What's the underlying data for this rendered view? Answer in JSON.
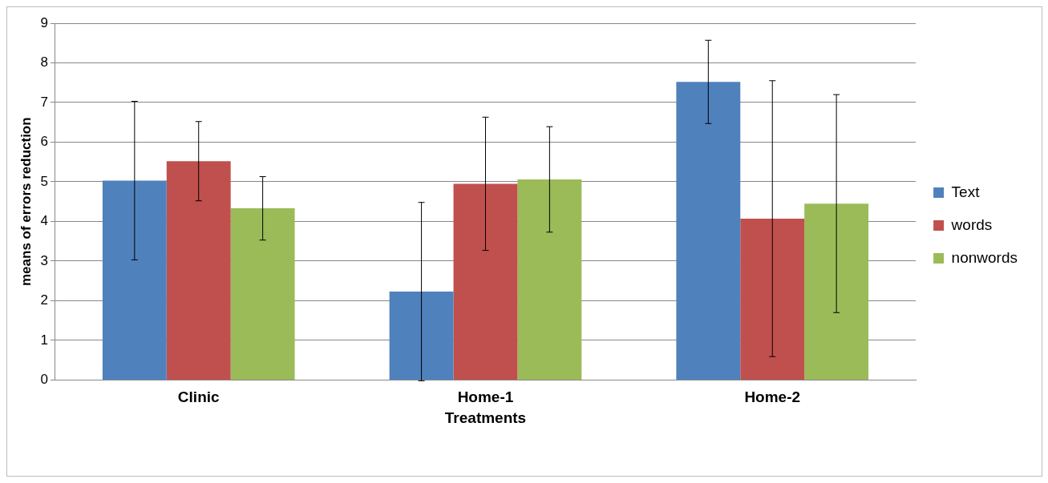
{
  "chart_data": {
    "type": "bar",
    "xlabel": "Treatments",
    "ylabel": "means of errors reduction",
    "categories": [
      "Clinic",
      "Home-1",
      "Home-2"
    ],
    "series": [
      {
        "name": "Text",
        "color": "#4f81bd",
        "values": [
          5.03,
          2.23,
          7.52
        ],
        "errors": [
          2,
          2.25,
          1.05
        ]
      },
      {
        "name": "words",
        "color": "#c0504d",
        "values": [
          5.52,
          4.95,
          4.07
        ],
        "errors": [
          1,
          1.68,
          3.48
        ]
      },
      {
        "name": "nonwords",
        "color": "#9bbb59",
        "values": [
          4.33,
          5.06,
          4.45
        ],
        "errors": [
          0.8,
          1.33,
          2.75
        ]
      }
    ],
    "ylim": [
      0,
      9
    ],
    "yticks": [
      0,
      1,
      2,
      3,
      4,
      5,
      6,
      7,
      8,
      9
    ],
    "grid": "y",
    "legend": "right"
  }
}
